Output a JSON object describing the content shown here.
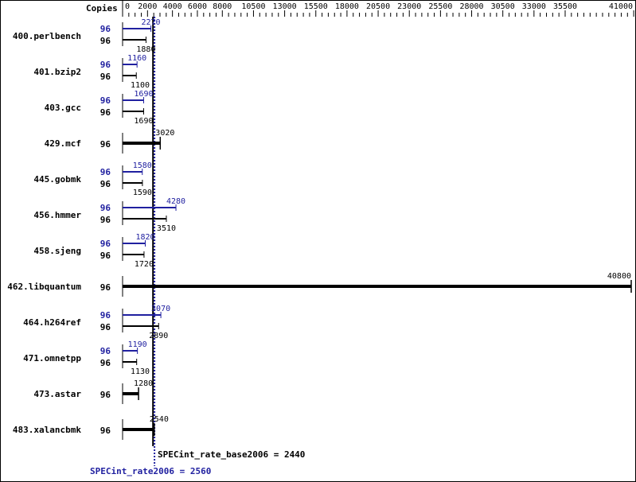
{
  "chart_data": {
    "type": "bar",
    "orientation": "horizontal",
    "copies_header": "Copies",
    "xlim": [
      0,
      41000
    ],
    "tick_labels": [
      0,
      2000,
      4000,
      6000,
      8000,
      10500,
      13000,
      15500,
      18000,
      20500,
      23000,
      25500,
      28000,
      30500,
      33000,
      35500,
      41000
    ],
    "colors": {
      "base": "#000000",
      "peak": "#2020a0"
    },
    "series": [
      {
        "key": "peak",
        "color": "#2020a0"
      },
      {
        "key": "base",
        "color": "#000000"
      }
    ],
    "benchmarks": [
      {
        "name": "400.perlbench",
        "peak_copies": "96",
        "peak": 2270,
        "base_copies": "96",
        "base": 1880
      },
      {
        "name": "401.bzip2",
        "peak_copies": "96",
        "peak": 1160,
        "base_copies": "96",
        "base": 1100
      },
      {
        "name": "403.gcc",
        "peak_copies": "96",
        "peak": 1690,
        "base_copies": "96",
        "base": 1690
      },
      {
        "name": "429.mcf",
        "peak_copies": null,
        "peak": null,
        "base_copies": "96",
        "base": 3020
      },
      {
        "name": "445.gobmk",
        "peak_copies": "96",
        "peak": 1580,
        "base_copies": "96",
        "base": 1590
      },
      {
        "name": "456.hmmer",
        "peak_copies": "96",
        "peak": 4280,
        "base_copies": "96",
        "base": 3510
      },
      {
        "name": "458.sjeng",
        "peak_copies": "96",
        "peak": 1820,
        "base_copies": "96",
        "base": 1720
      },
      {
        "name": "462.libquantum",
        "peak_copies": null,
        "peak": null,
        "base_copies": "96",
        "base": 40800
      },
      {
        "name": "464.h264ref",
        "peak_copies": "96",
        "peak": 3070,
        "base_copies": "96",
        "base": 2890
      },
      {
        "name": "471.omnetpp",
        "peak_copies": "96",
        "peak": 1190,
        "base_copies": "96",
        "base": 1130
      },
      {
        "name": "473.astar",
        "peak_copies": null,
        "peak": null,
        "base_copies": "96",
        "base": 1280
      },
      {
        "name": "483.xalancbmk",
        "peak_copies": null,
        "peak": null,
        "base_copies": "96",
        "base": 2540
      }
    ],
    "base_summary": {
      "label": "SPECint_rate_base2006 = 2440",
      "value": 2440
    },
    "peak_summary": {
      "label": "SPECint_rate2006 = 2560",
      "value": 2560
    }
  }
}
